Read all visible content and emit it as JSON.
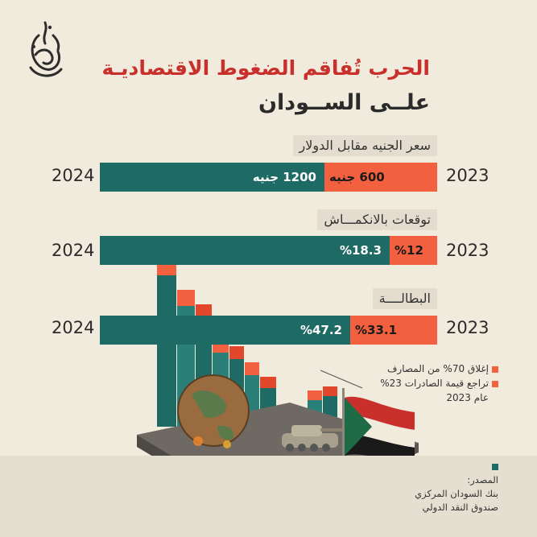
{
  "header": {
    "title_line1": "الحرب تُفاقم الضغوط الاقتصاديـة",
    "title_line2": "علــى الســودان"
  },
  "colors": {
    "dark": "#1e6b65",
    "light": "#f2603f",
    "red_title": "#c9302c",
    "background": "#f1ebdd"
  },
  "chart_data": [
    {
      "type": "bar",
      "label": "سعر الجنيه مقابل الدولار",
      "categories": [
        "2023",
        "2024"
      ],
      "series": [
        {
          "year": "2023",
          "value": 600,
          "display": "600 جنيه"
        },
        {
          "year": "2024",
          "value": 1200,
          "display": "1200 جنيه"
        }
      ],
      "max": 1200
    },
    {
      "type": "bar",
      "label": "توقعات بالانكمـــاش",
      "categories": [
        "2023",
        "2024"
      ],
      "series": [
        {
          "year": "2023",
          "value": 12,
          "display": "%12"
        },
        {
          "year": "2024",
          "value": 18.3,
          "display": "%18.3"
        }
      ],
      "max": 73
    },
    {
      "type": "bar",
      "label": "البطالــــة",
      "categories": [
        "2023",
        "2024"
      ],
      "series": [
        {
          "year": "2023",
          "value": 33.1,
          "display": "%33.1"
        },
        {
          "year": "2024",
          "value": 47.2,
          "display": "%47.2"
        }
      ],
      "max": 95
    }
  ],
  "years": {
    "left": "2024",
    "right": "2023"
  },
  "notes": {
    "items": [
      "إغلاق 70% من المصارف",
      "تراجع قيمة الصادرات 23%"
    ],
    "year_note": "عام 2023"
  },
  "source": {
    "title": "المصدر:",
    "lines": [
      "بنك السودان المركزي",
      "صندوق النقد الدولي"
    ]
  }
}
